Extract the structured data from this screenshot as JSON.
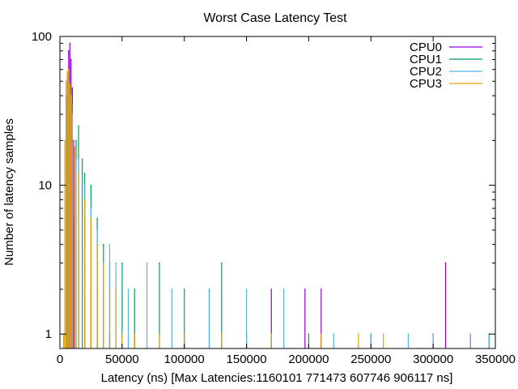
{
  "chart_data": {
    "type": "line",
    "title": "Worst Case Latency Test",
    "xlabel": "Latency (ns) [Max Latencies:1160101 771473 607746 906117 ns]",
    "ylabel": "Number of latency samples",
    "xlim": [
      0,
      350000
    ],
    "ylim": [
      0.8,
      100
    ],
    "y_scale": "log",
    "grid": false,
    "legend_position": "top-right",
    "x_ticks": [
      {
        "value": 0,
        "label": "0"
      },
      {
        "value": 50000,
        "label": "50000"
      },
      {
        "value": 100000,
        "label": "100000"
      },
      {
        "value": 150000,
        "label": "150000"
      },
      {
        "value": 200000,
        "label": "200000"
      },
      {
        "value": 250000,
        "label": "250000"
      },
      {
        "value": 300000,
        "label": "300000"
      },
      {
        "value": 350000,
        "label": "350000"
      }
    ],
    "y_ticks": [
      {
        "value": 1,
        "label": "1"
      },
      {
        "value": 10,
        "label": "10"
      },
      {
        "value": 100,
        "label": "100"
      }
    ],
    "series": [
      {
        "name": "CPU0",
        "color": "#9400d3",
        "x": [
          5000,
          6000,
          7000,
          8000,
          9000,
          10000,
          11000,
          12000,
          15000,
          20000,
          25000,
          30000,
          40000,
          60000,
          100000,
          170000,
          197000,
          210000,
          250000,
          300000,
          310000,
          330000,
          345000
        ],
        "y": [
          20,
          55,
          80,
          90,
          70,
          45,
          20,
          6,
          4,
          3,
          2,
          2,
          1,
          1,
          1,
          2,
          2,
          2,
          1,
          1,
          3,
          1,
          1
        ]
      },
      {
        "name": "CPU1",
        "color": "#009e73",
        "x": [
          3000,
          5000,
          7000,
          10000,
          13000,
          15000,
          18000,
          20000,
          25000,
          30000,
          35000,
          40000,
          50000,
          60000,
          80000,
          100000,
          120000,
          130000,
          150000,
          170000,
          200000
        ],
        "y": [
          1,
          40,
          60,
          35,
          20,
          25,
          15,
          12,
          10,
          6,
          4,
          3,
          3,
          2,
          3,
          2,
          2,
          3,
          1,
          1,
          1
        ]
      },
      {
        "name": "CPU2",
        "color": "#56b4e9",
        "x": [
          3000,
          5000,
          7000,
          10000,
          13000,
          15000,
          20000,
          25000,
          30000,
          40000,
          45000,
          55000,
          70000,
          90000,
          120000,
          150000,
          180000,
          220000,
          250000,
          280000,
          300000,
          330000,
          345000
        ],
        "y": [
          1,
          25,
          50,
          30,
          15,
          15,
          10,
          7,
          5,
          4,
          3,
          2,
          3,
          2,
          2,
          2,
          2,
          1,
          1,
          1,
          1,
          1,
          1
        ]
      },
      {
        "name": "CPU3",
        "color": "#e69f00",
        "x": [
          3000,
          4000,
          5000,
          6000,
          7000,
          8000,
          9000,
          10000,
          12000,
          15000,
          20000,
          25000,
          30000,
          35000,
          40000,
          45000,
          50000,
          60000,
          80000,
          100000,
          130000,
          170000,
          210000,
          240000,
          260000
        ],
        "y": [
          1,
          20,
          50,
          58,
          60,
          48,
          40,
          30,
          18,
          12,
          8,
          6,
          4,
          3,
          2,
          2,
          1,
          1,
          1,
          1,
          1,
          1,
          1,
          1,
          1
        ]
      }
    ]
  }
}
